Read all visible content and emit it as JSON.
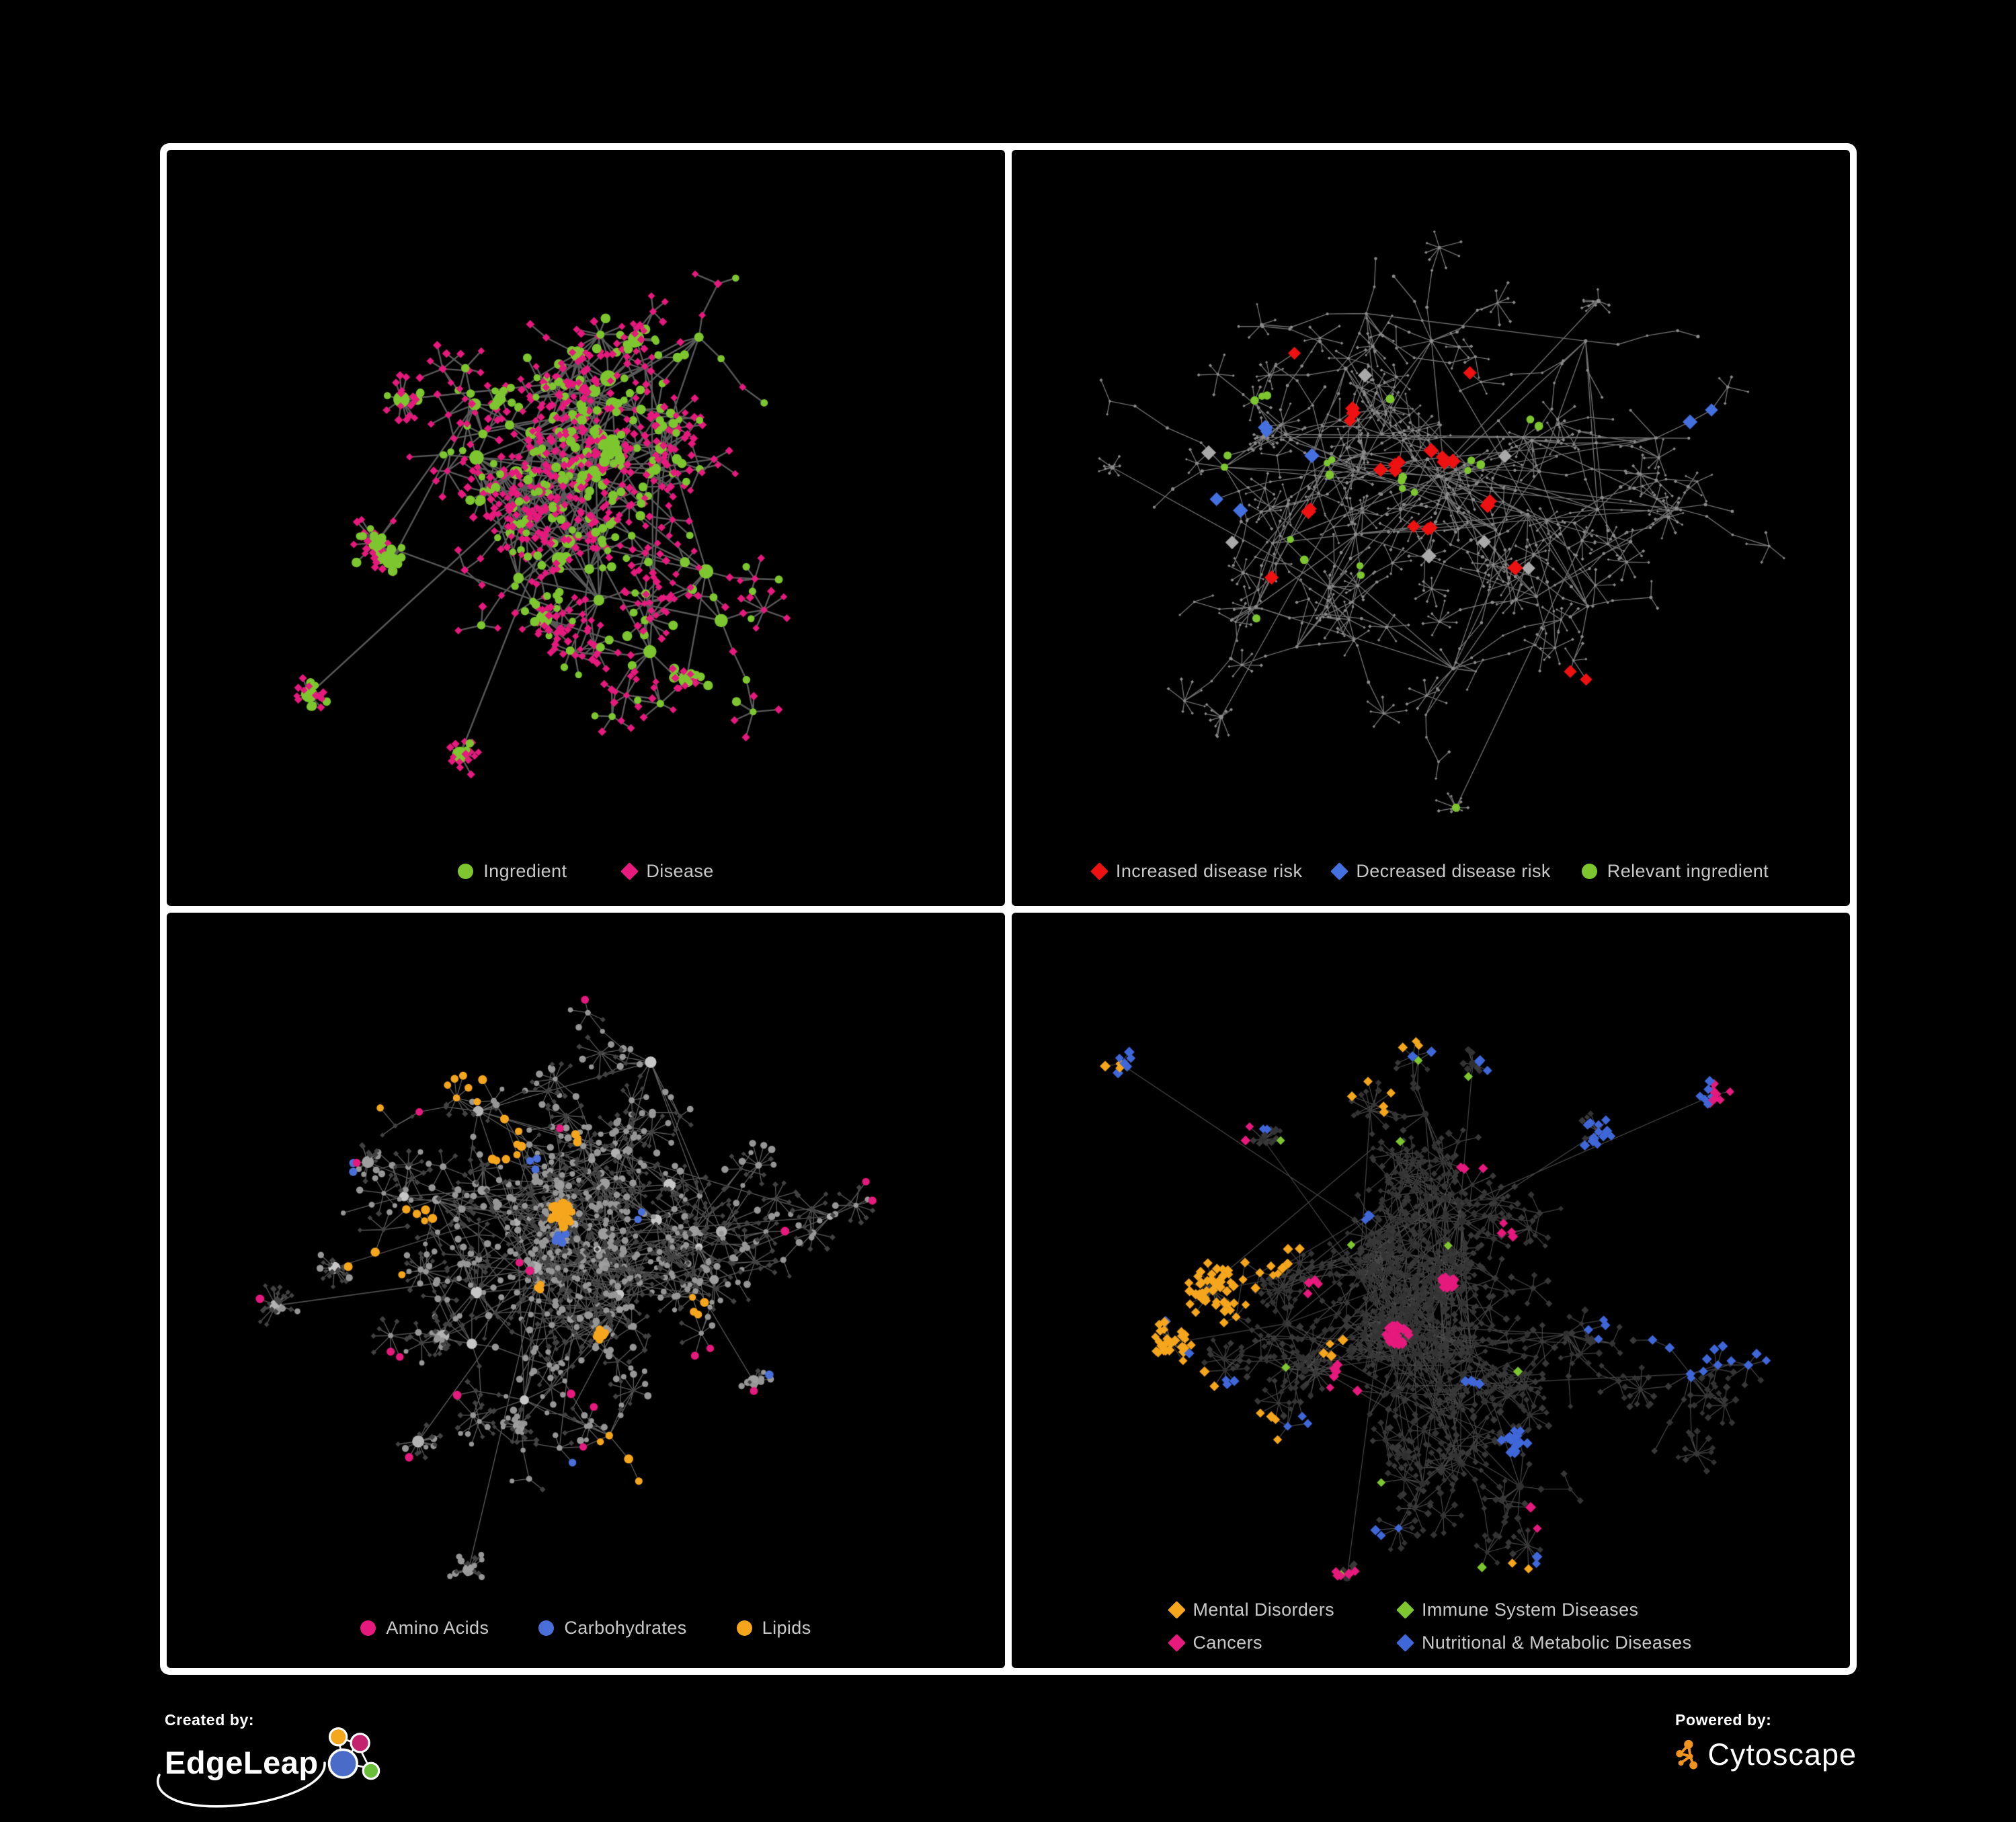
{
  "branding": {
    "created_by_label": "Created by:",
    "created_by_name": "EdgeLeap",
    "powered_by_label": "Powered by:",
    "powered_by_name": "Cytoscape"
  },
  "colors": {
    "background": "#000000",
    "panel_frame": "#ffffff",
    "legend_text": "#c9c9c9",
    "cytoscape_orange": "#f0941f",
    "edgeleap_logo": {
      "blue": "#4a6bc8",
      "orange": "#f2a71e",
      "magenta": "#c4216e",
      "green": "#6abf3a"
    }
  },
  "panels": [
    {
      "name": "ingredient-disease-network",
      "legend_layout": "row1",
      "structure": {
        "edge_color": "#6f6f6f"
      },
      "legend": [
        {
          "key": "ingredient",
          "label": "Ingredient",
          "shape": "circle",
          "color": "#7dc62f"
        },
        {
          "key": "disease",
          "label": "Disease",
          "shape": "diamond",
          "color": "#e6197d"
        }
      ]
    },
    {
      "name": "disease-risk-network",
      "legend_layout": "row2",
      "structure": {
        "edge_color": "#828282",
        "unmapped_node_color": "#8b8b8b",
        "neutral_diamond_color": "#a9a9a9"
      },
      "legend": [
        {
          "key": "increased",
          "label": "Increased disease risk",
          "shape": "diamond",
          "color": "#ee1111"
        },
        {
          "key": "decreased",
          "label": "Decreased disease risk",
          "shape": "diamond",
          "color": "#4570e0"
        },
        {
          "key": "relevant",
          "label": "Relevant ingredient",
          "shape": "circle",
          "color": "#7dc62f"
        }
      ]
    },
    {
      "name": "nutrient-category-network",
      "legend_layout": "row3",
      "structure": {
        "edge_color": "#9b9b9b",
        "ingredient_node_color": "#9e9e9e",
        "disease_node_color": "#424242"
      },
      "legend": [
        {
          "key": "amino",
          "label": "Amino Acids",
          "shape": "circle",
          "color": "#e6197d"
        },
        {
          "key": "carb",
          "label": "Carbohydrates",
          "shape": "circle",
          "color": "#4a6fd9"
        },
        {
          "key": "lipid",
          "label": "Lipids",
          "shape": "circle",
          "color": "#f5a61d"
        }
      ]
    },
    {
      "name": "disease-category-network",
      "legend_layout": "grid2",
      "structure": {
        "edge_color": "#8f8f8f",
        "unmapped_node_color": "#383838"
      },
      "legend": [
        {
          "key": "mental",
          "label": "Mental Disorders",
          "shape": "diamond",
          "color": "#f5a61d"
        },
        {
          "key": "immune",
          "label": "Immune System Diseases",
          "shape": "diamond",
          "color": "#7dc62f"
        },
        {
          "key": "cancer",
          "label": "Cancers",
          "shape": "diamond",
          "color": "#e6197d"
        },
        {
          "key": "nutri",
          "label": "Nutritional & Metabolic Diseases",
          "shape": "diamond",
          "color": "#3f67d8"
        }
      ]
    }
  ]
}
